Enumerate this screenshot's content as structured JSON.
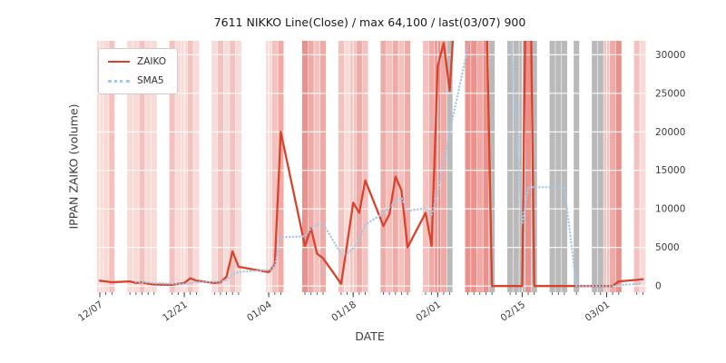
{
  "chart_data": {
    "type": "line",
    "title": "7611 NIKKO Line(Close) / max 64,100 / last(03/07) 900",
    "xlabel": "DATE",
    "ylabel": "IPPAN ZAIKO (volume)",
    "max_value": 64100,
    "last_date": "03/07",
    "last_value": 900,
    "legend_position": "upper-left",
    "grid": true,
    "ylim": [
      -800,
      31800
    ],
    "y_ticks": [
      0,
      5000,
      10000,
      15000,
      20000,
      25000,
      30000
    ],
    "x_ticks": {
      "labels": [
        "12/07",
        "12/21",
        "01/04",
        "01/18",
        "02/01",
        "02/15",
        "03/01"
      ],
      "days": [
        0,
        14,
        28,
        42,
        56,
        70,
        84
      ]
    },
    "dates": [
      "12/07",
      "12/08",
      "12/09",
      "12/12",
      "12/13",
      "12/14",
      "12/15",
      "12/16",
      "12/19",
      "12/20",
      "12/21",
      "12/22",
      "12/23",
      "12/26",
      "12/27",
      "12/28",
      "12/29",
      "12/30",
      "01/04",
      "01/05",
      "01/06",
      "01/10",
      "01/11",
      "01/12",
      "01/13",
      "01/16",
      "01/17",
      "01/18",
      "01/19",
      "01/20",
      "01/23",
      "01/24",
      "01/25",
      "01/26",
      "01/27",
      "01/30",
      "01/31",
      "02/01",
      "02/02",
      "02/03",
      "02/06",
      "02/07",
      "02/08",
      "02/09",
      "02/10",
      "02/13",
      "02/14",
      "02/15",
      "02/16",
      "02/17",
      "02/20",
      "02/21",
      "02/22",
      "02/24",
      "02/27",
      "02/28",
      "03/01",
      "03/02",
      "03/03",
      "03/06",
      "03/07"
    ],
    "day_offsets": [
      0,
      1,
      2,
      5,
      6,
      7,
      8,
      9,
      12,
      13,
      14,
      15,
      16,
      19,
      20,
      21,
      22,
      23,
      28,
      29,
      30,
      34,
      35,
      36,
      37,
      40,
      41,
      42,
      43,
      44,
      47,
      48,
      49,
      50,
      51,
      54,
      55,
      56,
      57,
      58,
      61,
      62,
      63,
      64,
      65,
      68,
      69,
      70,
      71,
      72,
      75,
      76,
      77,
      79,
      82,
      83,
      84,
      85,
      86,
      89,
      90
    ],
    "series": [
      {
        "name": "ZAIKO",
        "color": "#d9432c",
        "style": "solid",
        "values": [
          700,
          600,
          500,
          600,
          400,
          500,
          300,
          200,
          150,
          300,
          400,
          1000,
          700,
          400,
          500,
          1200,
          4500,
          2500,
          1800,
          2800,
          20000,
          5200,
          7500,
          4200,
          3600,
          300,
          5500,
          10800,
          9500,
          13700,
          7800,
          9300,
          14200,
          12400,
          5000,
          9500,
          5200,
          28500,
          31500,
          25300,
          64100,
          64100,
          64100,
          40000,
          0,
          0,
          0,
          0,
          64100,
          0,
          0,
          0,
          0,
          0,
          0,
          0,
          0,
          0,
          600,
          800,
          900
        ]
      },
      {
        "name": "SMA5",
        "color": "#a3c8e8",
        "style": "dotted",
        "values": [
          null,
          null,
          null,
          null,
          560,
          520,
          460,
          400,
          310,
          290,
          270,
          410,
          510,
          560,
          600,
          760,
          1460,
          1820,
          2100,
          2560,
          6320,
          6460,
          7460,
          7940,
          8100,
          4160,
          4220,
          4880,
          5940,
          7960,
          9460,
          10220,
          10900,
          11480,
          9740,
          10080,
          9260,
          12120,
          15940,
          20000,
          30920,
          42700,
          49820,
          51520,
          46460,
          33640,
          20820,
          8000,
          12820,
          12820,
          12820,
          12820,
          12820,
          0,
          0,
          0,
          0,
          0,
          120,
          280,
          460
        ]
      }
    ],
    "background_bands": {
      "shade_colors": {
        "r1": "rgba(225,85,75,0.22)",
        "r2": "rgba(225,85,75,0.36)",
        "r3": "rgba(225,85,75,0.50)",
        "r4": "rgba(225,85,75,0.65)",
        "g": "rgba(115,115,115,0.50)"
      },
      "day_shade": [
        "r1",
        "r1",
        "r2",
        "r1",
        "r1",
        "r2",
        "r1",
        "r1",
        "r2",
        "r1",
        "r1",
        "r2",
        "r1",
        "r1",
        "r2",
        "r1",
        "r2",
        "r1",
        "r1",
        "r2",
        "r3",
        "r4",
        "r3",
        "r2",
        "r3",
        "r2",
        "r1",
        "r2",
        "r3",
        "r2",
        "r3",
        "r2",
        "r3",
        "r2",
        "r3",
        "r2",
        "r3",
        "r4",
        "r3",
        "g",
        "r4",
        "r4",
        "r3",
        "r4",
        "g",
        "g",
        "g",
        "g",
        "r4",
        "g",
        "g",
        "g",
        "g",
        "g",
        "g",
        "g",
        "r2",
        "r3",
        "r4",
        "r2",
        "r1"
      ]
    }
  }
}
